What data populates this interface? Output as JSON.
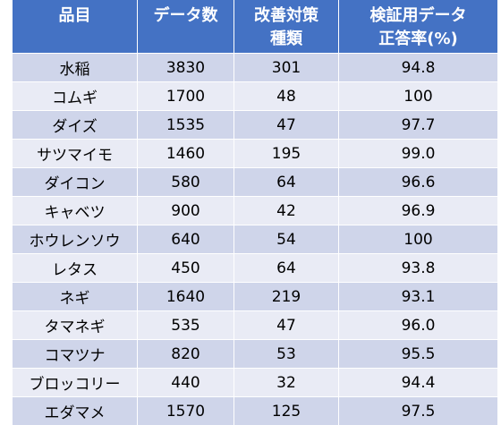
{
  "theme": {
    "header_bg": "#4472C4",
    "header_text": "#FFFFFF",
    "row_dark": "#CFD5EA",
    "row_light": "#E9EBF5",
    "grid_line": "#FFFFFF",
    "text": "#000000"
  },
  "chart_data": {
    "type": "table",
    "columns": [
      [
        "品目"
      ],
      [
        "データ数"
      ],
      [
        "改善対策",
        "種類"
      ],
      [
        "検証用データ",
        "正答率(%)"
      ]
    ],
    "rows": [
      [
        "水稲",
        "3830",
        "301",
        "94.8"
      ],
      [
        "コムギ",
        "1700",
        "48",
        "100"
      ],
      [
        "ダイズ",
        "1535",
        "47",
        "97.7"
      ],
      [
        "サツマイモ",
        "1460",
        "195",
        "99.0"
      ],
      [
        "ダイコン",
        "580",
        "64",
        "96.6"
      ],
      [
        "キャベツ",
        "900",
        "42",
        "96.9"
      ],
      [
        "ホウレンソウ",
        "640",
        "54",
        "100"
      ],
      [
        "レタス",
        "450",
        "64",
        "93.8"
      ],
      [
        "ネギ",
        "1640",
        "219",
        "93.1"
      ],
      [
        "タマネギ",
        "535",
        "47",
        "96.0"
      ],
      [
        "コマツナ",
        "820",
        "53",
        "95.5"
      ],
      [
        "ブロッコリー",
        "440",
        "32",
        "94.4"
      ],
      [
        "エダマメ",
        "1570",
        "125",
        "97.5"
      ]
    ]
  }
}
